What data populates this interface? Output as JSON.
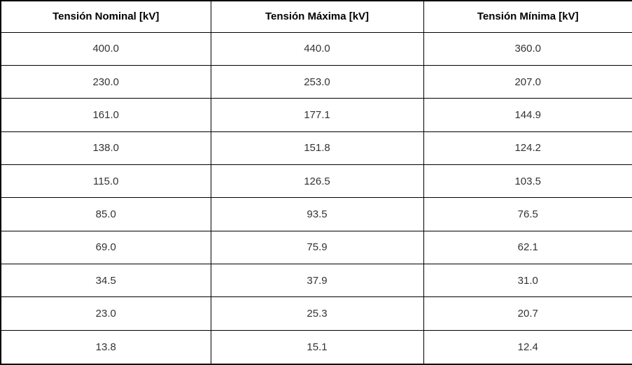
{
  "chart_data": {
    "type": "table",
    "columns": [
      "Tensión Nominal [kV]",
      "Tensión Máxima [kV]",
      "Tensión Mínima [kV]"
    ],
    "rows": [
      [
        "400.0",
        "440.0",
        "360.0"
      ],
      [
        "230.0",
        "253.0",
        "207.0"
      ],
      [
        "161.0",
        "177.1",
        "144.9"
      ],
      [
        "138.0",
        "151.8",
        "124.2"
      ],
      [
        "115.0",
        "126.5",
        "103.5"
      ],
      [
        "85.0",
        "93.5",
        "76.5"
      ],
      [
        "69.0",
        "75.9",
        "62.1"
      ],
      [
        "34.5",
        "37.9",
        "31.0"
      ],
      [
        "23.0",
        "25.3",
        "20.7"
      ],
      [
        "13.8",
        "15.1",
        "12.4"
      ]
    ],
    "layout": {
      "grid": "on",
      "header_style": "bold",
      "alignment": "center"
    }
  },
  "colors": {
    "border": "#000000",
    "background": "#ffffff",
    "header_text": "#000000",
    "cell_text": "#333333"
  }
}
